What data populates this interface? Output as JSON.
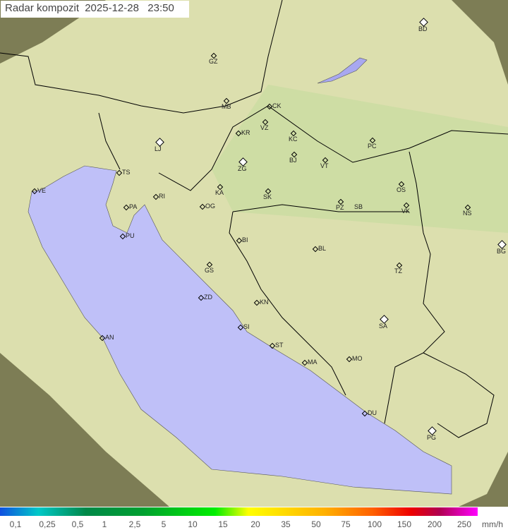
{
  "title": {
    "label": "Radar kompozit",
    "date": "2025-12-28",
    "time": "23:50"
  },
  "colors": {
    "land": "#d6dca4",
    "sea": "#bfc0f8",
    "outside": "#8a8a5a",
    "border": "#000000"
  },
  "cities": [
    "GZ",
    "BD",
    "MB",
    "CK",
    "VZ",
    "KR",
    "KC",
    "PC",
    "LJ",
    "ZG",
    "BJ",
    "VT",
    "TS",
    "VE",
    "RI",
    "KA",
    "SK",
    "OS",
    "PZ",
    "SB",
    "VK",
    "NS",
    "PA",
    "OG",
    "PU",
    "BG",
    "BI",
    "BL",
    "GS",
    "TZ",
    "ZD",
    "KN",
    "SA",
    "SI",
    "AN",
    "ST",
    "MO",
    "MA",
    "DU",
    "PG"
  ],
  "legend": {
    "ticks": [
      "0,1",
      "0,25",
      "0,5",
      "1",
      "2,5",
      "5",
      "10",
      "15",
      "20",
      "35",
      "50",
      "75",
      "100",
      "150",
      "200",
      "250"
    ],
    "unit": "mm/h"
  }
}
